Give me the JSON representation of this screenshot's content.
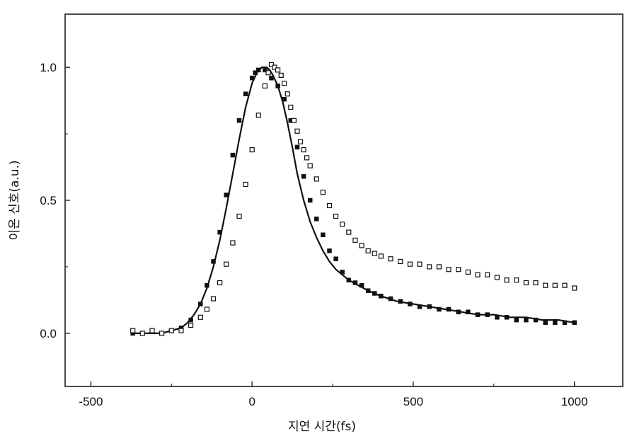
{
  "chart_data": {
    "type": "scatter",
    "title": "",
    "xlabel": "지연 시간(fs)",
    "ylabel": "이온 신호(a.u.)",
    "xlim": [
      -580,
      1150
    ],
    "ylim": [
      -0.2,
      1.2
    ],
    "x_ticks": [
      -500,
      0,
      500,
      1000
    ],
    "x_tick_labels": [
      "-500",
      "0",
      "500",
      "1000"
    ],
    "y_ticks": [
      0.0,
      0.5,
      1.0
    ],
    "y_tick_labels": [
      "0.0",
      "0.5",
      "1.0"
    ],
    "grid": false,
    "legend": "none",
    "series": [
      {
        "marker": "filled-square",
        "color": "#111111",
        "x": [
          -370,
          -340,
          -310,
          -280,
          -250,
          -220,
          -190,
          -160,
          -140,
          -120,
          -100,
          -80,
          -60,
          -40,
          -20,
          0,
          10,
          20,
          40,
          60,
          80,
          100,
          120,
          140,
          160,
          180,
          200,
          220,
          240,
          260,
          280,
          300,
          320,
          340,
          360,
          380,
          400,
          430,
          460,
          490,
          520,
          550,
          580,
          610,
          640,
          670,
          700,
          730,
          760,
          790,
          820,
          850,
          880,
          910,
          940,
          970,
          1000
        ],
        "y": [
          0.0,
          0.0,
          0.01,
          0.0,
          0.01,
          0.02,
          0.05,
          0.11,
          0.18,
          0.27,
          0.38,
          0.52,
          0.67,
          0.8,
          0.9,
          0.96,
          0.98,
          0.99,
          0.99,
          0.96,
          0.93,
          0.88,
          0.8,
          0.7,
          0.59,
          0.5,
          0.43,
          0.37,
          0.31,
          0.28,
          0.23,
          0.2,
          0.19,
          0.18,
          0.16,
          0.15,
          0.14,
          0.13,
          0.12,
          0.11,
          0.1,
          0.1,
          0.09,
          0.09,
          0.08,
          0.08,
          0.07,
          0.07,
          0.06,
          0.06,
          0.05,
          0.05,
          0.05,
          0.04,
          0.04,
          0.04,
          0.04
        ]
      },
      {
        "marker": "open-square",
        "color": "#111111",
        "x": [
          -370,
          -340,
          -310,
          -280,
          -250,
          -220,
          -190,
          -160,
          -140,
          -120,
          -100,
          -80,
          -60,
          -40,
          -20,
          0,
          20,
          40,
          50,
          60,
          70,
          80,
          90,
          100,
          110,
          120,
          130,
          140,
          150,
          160,
          170,
          180,
          200,
          220,
          240,
          260,
          280,
          300,
          320,
          340,
          360,
          380,
          400,
          430,
          460,
          490,
          520,
          550,
          580,
          610,
          640,
          670,
          700,
          730,
          760,
          790,
          820,
          850,
          880,
          910,
          940,
          970,
          1000
        ],
        "y": [
          0.01,
          0.0,
          0.01,
          0.0,
          0.01,
          0.01,
          0.03,
          0.06,
          0.09,
          0.13,
          0.19,
          0.26,
          0.34,
          0.44,
          0.56,
          0.69,
          0.82,
          0.93,
          0.98,
          1.01,
          1.0,
          0.99,
          0.97,
          0.94,
          0.9,
          0.85,
          0.8,
          0.76,
          0.72,
          0.69,
          0.66,
          0.63,
          0.58,
          0.53,
          0.48,
          0.44,
          0.41,
          0.38,
          0.35,
          0.33,
          0.31,
          0.3,
          0.29,
          0.28,
          0.27,
          0.26,
          0.26,
          0.25,
          0.25,
          0.24,
          0.24,
          0.23,
          0.22,
          0.22,
          0.21,
          0.2,
          0.2,
          0.19,
          0.19,
          0.18,
          0.18,
          0.18,
          0.17
        ]
      }
    ],
    "fit_curve": {
      "style": "solid-line",
      "color": "#111111",
      "x": [
        -370,
        -340,
        -310,
        -280,
        -250,
        -220,
        -200,
        -180,
        -160,
        -140,
        -120,
        -100,
        -80,
        -60,
        -40,
        -20,
        0,
        15,
        30,
        45,
        55,
        65,
        80,
        95,
        110,
        125,
        140,
        160,
        180,
        200,
        220,
        240,
        260,
        280,
        300,
        330,
        360,
        400,
        450,
        500,
        550,
        600,
        650,
        700,
        750,
        800,
        850,
        900,
        950,
        1000
      ],
      "y": [
        0.0,
        0.0,
        0.0,
        0.0,
        0.01,
        0.02,
        0.04,
        0.07,
        0.11,
        0.17,
        0.25,
        0.35,
        0.47,
        0.6,
        0.73,
        0.85,
        0.94,
        0.98,
        1.0,
        1.0,
        0.99,
        0.97,
        0.93,
        0.87,
        0.79,
        0.7,
        0.6,
        0.5,
        0.42,
        0.36,
        0.31,
        0.27,
        0.24,
        0.22,
        0.2,
        0.18,
        0.16,
        0.14,
        0.12,
        0.11,
        0.1,
        0.09,
        0.08,
        0.07,
        0.07,
        0.06,
        0.06,
        0.05,
        0.05,
        0.04
      ]
    }
  }
}
